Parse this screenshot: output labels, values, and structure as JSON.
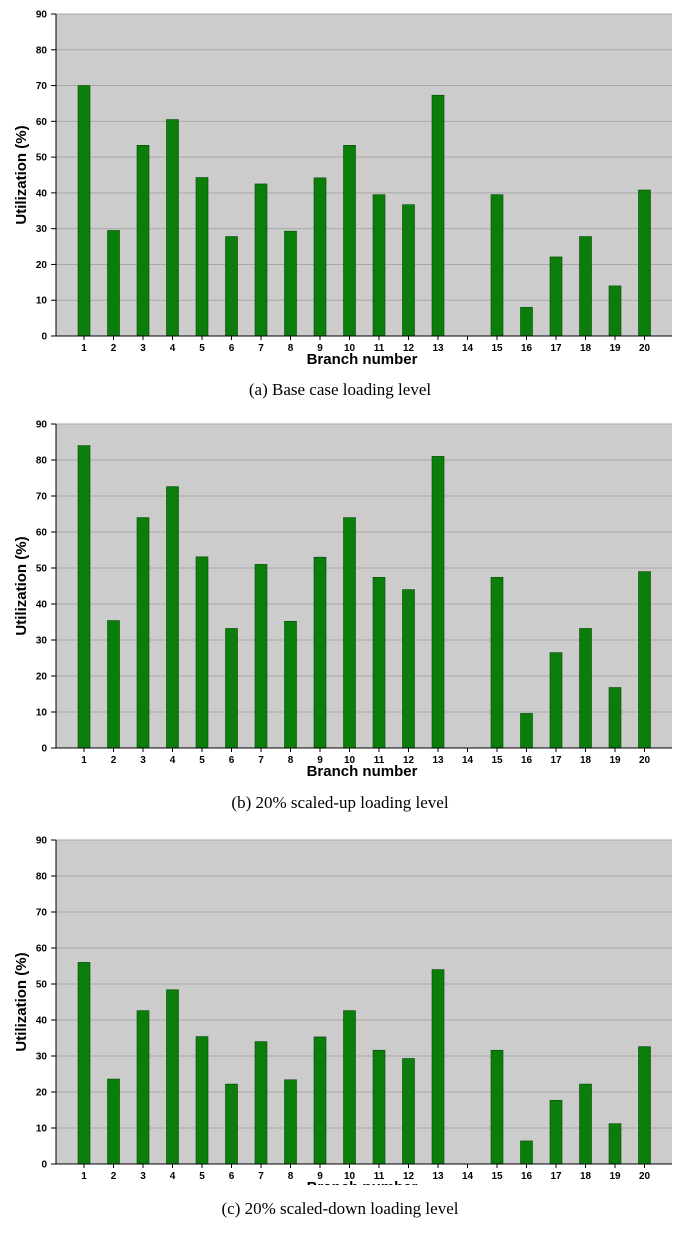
{
  "chart_data": [
    {
      "type": "bar",
      "caption": "(a) Base case loading level",
      "xlabel": "Branch number",
      "ylabel": "Utilization (%)",
      "ylim": [
        0,
        90
      ],
      "yticks": [
        0,
        10,
        20,
        30,
        40,
        50,
        60,
        70,
        80,
        90
      ],
      "grid": true,
      "categories": [
        "1",
        "2",
        "3",
        "4",
        "5",
        "6",
        "7",
        "8",
        "9",
        "10",
        "11",
        "12",
        "13",
        "14",
        "15",
        "16",
        "17",
        "18",
        "19",
        "20"
      ],
      "values": [
        70,
        29.5,
        53.3,
        60.5,
        44.3,
        27.8,
        42.5,
        29.3,
        44.2,
        53.3,
        39.5,
        36.7,
        67.3,
        0,
        39.5,
        8,
        22.1,
        27.8,
        14,
        40.8
      ],
      "bar_color": "#0a7d0a",
      "plot_bg": "#cccccc"
    },
    {
      "type": "bar",
      "caption": "(b) 20% scaled-up loading level",
      "xlabel": "Branch number",
      "ylabel": "Utilization (%)",
      "ylim": [
        0,
        90
      ],
      "yticks": [
        0,
        10,
        20,
        30,
        40,
        50,
        60,
        70,
        80,
        90
      ],
      "grid": true,
      "categories": [
        "1",
        "2",
        "3",
        "4",
        "5",
        "6",
        "7",
        "8",
        "9",
        "10",
        "11",
        "12",
        "13",
        "14",
        "15",
        "16",
        "17",
        "18",
        "19",
        "20"
      ],
      "values": [
        84,
        35.4,
        64,
        72.6,
        53.1,
        33.2,
        51,
        35.2,
        53,
        64,
        47.4,
        44,
        81,
        0,
        47.4,
        9.6,
        26.5,
        33.2,
        16.8,
        49
      ],
      "bar_color": "#0a7d0a",
      "plot_bg": "#cccccc"
    },
    {
      "type": "bar",
      "caption": "(c) 20% scaled-down loading level",
      "xlabel": "Branch number",
      "ylabel": "Utilization (%)",
      "ylim": [
        0,
        90
      ],
      "yticks": [
        0,
        10,
        20,
        30,
        40,
        50,
        60,
        70,
        80,
        90
      ],
      "grid": true,
      "categories": [
        "1",
        "2",
        "3",
        "4",
        "5",
        "6",
        "7",
        "8",
        "9",
        "10",
        "11",
        "12",
        "13",
        "14",
        "15",
        "16",
        "17",
        "18",
        "19",
        "20"
      ],
      "values": [
        56,
        23.6,
        42.6,
        48.4,
        35.4,
        22.2,
        34,
        23.4,
        35.3,
        42.6,
        31.6,
        29.3,
        54,
        0,
        31.6,
        6.4,
        17.7,
        22.2,
        11.2,
        32.6
      ],
      "bar_color": "#0a7d0a",
      "plot_bg": "#cccccc"
    }
  ]
}
